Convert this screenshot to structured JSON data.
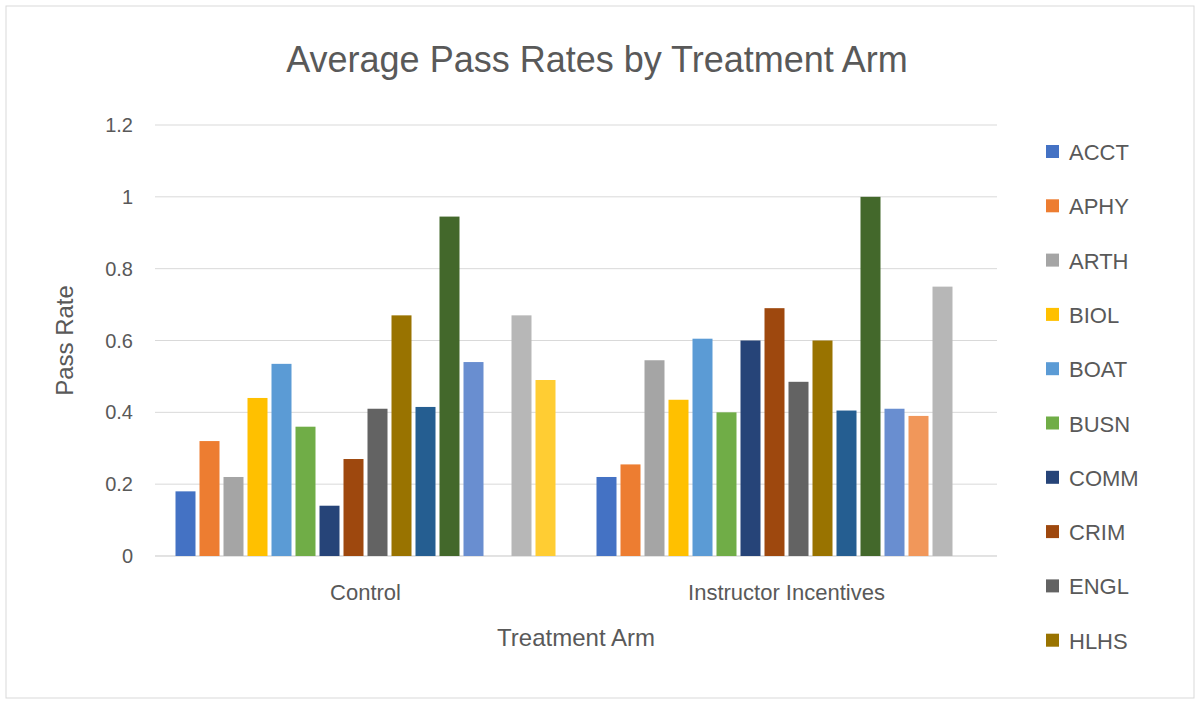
{
  "chart_data": {
    "type": "bar",
    "title": "Average Pass Rates by Treatment Arm",
    "x_label": "Treatment Arm",
    "y_label": "Pass Rate",
    "categories": [
      "Control",
      "Instructor Incentives"
    ],
    "ylim": [
      0,
      1.2
    ],
    "yticks": [
      0,
      0.2,
      0.4,
      0.6,
      0.8,
      1,
      1.2
    ],
    "grid": true,
    "legend": "right",
    "series": [
      {
        "name": "ACCT",
        "color": "#4472c4",
        "values": [
          0.18,
          0.22
        ]
      },
      {
        "name": "APHY",
        "color": "#ed7d31",
        "values": [
          0.32,
          0.255
        ]
      },
      {
        "name": "ARTH",
        "color": "#a5a5a5",
        "values": [
          0.22,
          0.545
        ]
      },
      {
        "name": "BIOL",
        "color": "#ffc000",
        "values": [
          0.44,
          0.435
        ]
      },
      {
        "name": "BOAT",
        "color": "#5b9bd5",
        "values": [
          0.535,
          0.605
        ]
      },
      {
        "name": "BUSN",
        "color": "#70ad47",
        "values": [
          0.36,
          0.4
        ]
      },
      {
        "name": "COMM",
        "color": "#264478",
        "values": [
          0.14,
          0.6
        ]
      },
      {
        "name": "CRIM",
        "color": "#9e480e",
        "values": [
          0.27,
          0.69
        ]
      },
      {
        "name": "ENGL",
        "color": "#636363",
        "values": [
          0.41,
          0.485
        ]
      },
      {
        "name": "HLHS",
        "color": "#997300",
        "values": [
          0.67,
          0.6
        ]
      },
      {
        "color": "#255e91",
        "values": [
          0.415,
          0.405
        ]
      },
      {
        "color": "#43682b",
        "values": [
          0.945,
          1.0
        ]
      },
      {
        "color": "#698ed0",
        "values": [
          0.54,
          0.41
        ]
      },
      {
        "color": "#f1975a",
        "values": [
          null,
          0.39
        ]
      },
      {
        "color": "#b7b7b7",
        "values": [
          0.67,
          0.75
        ]
      },
      {
        "color": "#ffcd33",
        "values": [
          0.49,
          null
        ]
      }
    ]
  }
}
